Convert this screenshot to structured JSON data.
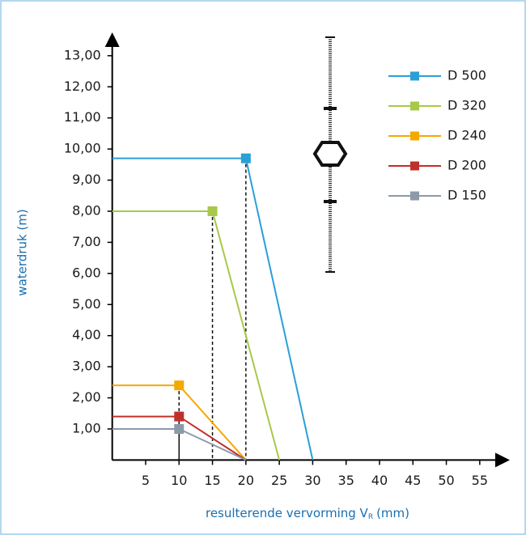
{
  "chart_data": {
    "type": "line",
    "x_label": "resulterende vervorming V",
    "x_label_sub": "R",
    "x_label_unit": "(mm)",
    "y_label": "waterdruk (m)",
    "xlim": [
      0,
      59.5
    ],
    "ylim": [
      0,
      13.75
    ],
    "xticks": [
      5,
      10,
      15,
      20,
      25,
      30,
      35,
      40,
      45,
      50,
      55
    ],
    "yticks": [
      {
        "value": 1,
        "label": "1,00"
      },
      {
        "value": 2,
        "label": "2,00"
      },
      {
        "value": 3,
        "label": "3,00"
      },
      {
        "value": 4,
        "label": "4,00"
      },
      {
        "value": 5,
        "label": "5,00"
      },
      {
        "value": 6,
        "label": "6,00"
      },
      {
        "value": 7,
        "label": "7,00"
      },
      {
        "value": 8,
        "label": "8,00"
      },
      {
        "value": 9,
        "label": "9,00"
      },
      {
        "value": 10,
        "label": "10,00"
      },
      {
        "value": 11,
        "label": "11,00"
      },
      {
        "value": 12,
        "label": "12,00"
      },
      {
        "value": 13,
        "label": "13,00"
      }
    ],
    "series": [
      {
        "name": "D 500",
        "color": "#2a9fd8",
        "x": [
          0,
          20,
          30
        ],
        "values": [
          9.7,
          9.7,
          0
        ]
      },
      {
        "name": "D 320",
        "color": "#a8c84a",
        "x": [
          0,
          15,
          25
        ],
        "values": [
          8,
          8,
          0
        ]
      },
      {
        "name": "D 240",
        "color": "#f5a800",
        "x": [
          0,
          10,
          20
        ],
        "values": [
          2.4,
          2.4,
          0
        ]
      },
      {
        "name": "D 200",
        "color": "#c0302a",
        "x": [
          0,
          10,
          20
        ],
        "values": [
          1.4,
          1.4,
          0
        ]
      },
      {
        "name": "D 150",
        "color": "#8c9aa8",
        "x": [
          0,
          10,
          20
        ],
        "values": [
          1,
          1,
          0
        ]
      }
    ]
  }
}
